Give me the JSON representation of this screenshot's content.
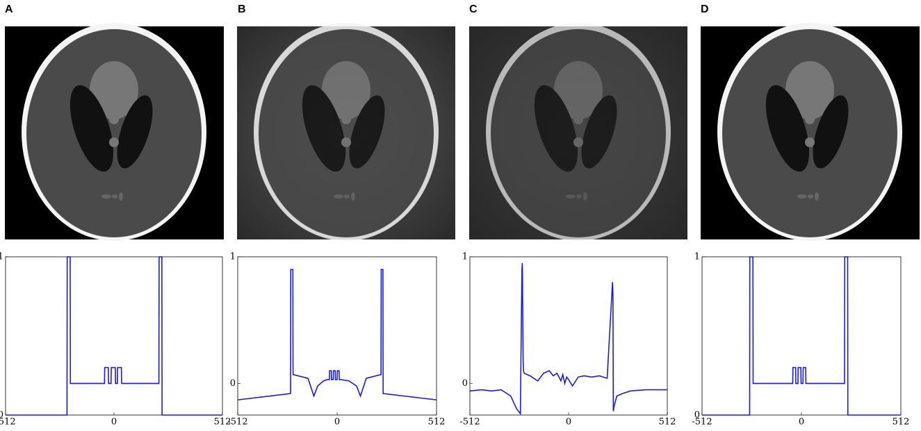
{
  "chart_data": [
    {
      "type": "line",
      "title": "A",
      "color": "#1a1ae0",
      "x": [
        -512,
        -222,
        -221,
        -207,
        -206,
        -45,
        -44,
        -27,
        -26,
        -14,
        -13,
        6,
        7,
        16,
        17,
        35,
        36,
        212,
        213,
        226,
        227,
        512
      ],
      "values": [
        0,
        0,
        1,
        1,
        0.2,
        0.2,
        0.3,
        0.3,
        0.2,
        0.2,
        0.3,
        0.3,
        0.2,
        0.2,
        0.3,
        0.3,
        0.2,
        0.2,
        1,
        1,
        0,
        0
      ],
      "xlim": [
        -512,
        512
      ],
      "xticks": [
        -512,
        0,
        512
      ],
      "ylim": [
        0,
        1
      ],
      "yticks": [
        0,
        1
      ]
    },
    {
      "type": "line",
      "title": "B",
      "color": "#1a1ae0",
      "x": [
        -512,
        -240,
        -239,
        -228,
        -227,
        -150,
        -120,
        -100,
        -70,
        -50,
        -40,
        -39,
        -30,
        -29,
        -20,
        -19,
        -10,
        -9,
        0,
        1,
        10,
        11,
        20,
        60,
        100,
        120,
        150,
        226,
        227,
        236,
        237,
        512
      ],
      "values": [
        -0.13,
        -0.08,
        0.9,
        0.9,
        0.07,
        0.04,
        -0.1,
        -0.02,
        0.02,
        0.03,
        0.03,
        0.1,
        0.1,
        0.03,
        0.03,
        0.1,
        0.1,
        0.03,
        0.03,
        0.1,
        0.1,
        0.03,
        0.03,
        0.02,
        -0.02,
        -0.1,
        0.04,
        0.07,
        0.9,
        0.9,
        -0.08,
        -0.13
      ],
      "xlim": [
        -512,
        512
      ],
      "xticks": [
        -512,
        0,
        512
      ],
      "ylim": [
        -0.25,
        1
      ],
      "yticks": [
        0,
        1
      ]
    },
    {
      "type": "line",
      "title": "C",
      "color": "#1a1ae0",
      "x": [
        -512,
        -450,
        -400,
        -350,
        -300,
        -270,
        -250,
        -245,
        -242,
        -240,
        -236,
        -234,
        -230,
        -200,
        -160,
        -130,
        -100,
        -80,
        -60,
        -40,
        -30,
        -20,
        -10,
        0,
        20,
        50,
        80,
        120,
        160,
        200,
        226,
        228,
        230,
        232,
        236,
        250,
        280,
        320,
        400,
        512
      ],
      "values": [
        -0.06,
        -0.05,
        -0.06,
        -0.05,
        -0.1,
        -0.2,
        -0.24,
        0.5,
        0.9,
        0.95,
        0.2,
        0.1,
        0.08,
        0.06,
        0.02,
        0.08,
        0.1,
        0.06,
        0.08,
        0.02,
        0.07,
        0.0,
        0.05,
        0.03,
        -0.02,
        0.05,
        0.06,
        0.05,
        0.06,
        0.04,
        0.75,
        0.8,
        0.7,
        -0.22,
        -0.18,
        -0.1,
        -0.08,
        -0.06,
        -0.05,
        -0.05
      ],
      "xlim": [
        -512,
        512
      ],
      "xticks": [
        -512,
        0,
        512
      ],
      "ylim": [
        -0.25,
        1
      ],
      "yticks": [
        0,
        1
      ]
    },
    {
      "type": "line",
      "title": "D",
      "color": "#1a1ae0",
      "x": [
        -512,
        -267,
        -266,
        -250,
        -249,
        -45,
        -44,
        -30,
        -29,
        -18,
        -17,
        -3,
        -2,
        8,
        9,
        22,
        23,
        222,
        223,
        238,
        239,
        512
      ],
      "values": [
        0,
        0,
        1,
        1,
        0.2,
        0.2,
        0.3,
        0.3,
        0.2,
        0.2,
        0.3,
        0.3,
        0.2,
        0.2,
        0.3,
        0.3,
        0.2,
        0.2,
        1,
        1,
        0,
        0
      ],
      "xlim": [
        -512,
        512
      ],
      "xticks": [
        -512,
        0,
        512
      ],
      "ylim": [
        0,
        1
      ],
      "yticks": [
        0,
        1
      ]
    }
  ]
}
